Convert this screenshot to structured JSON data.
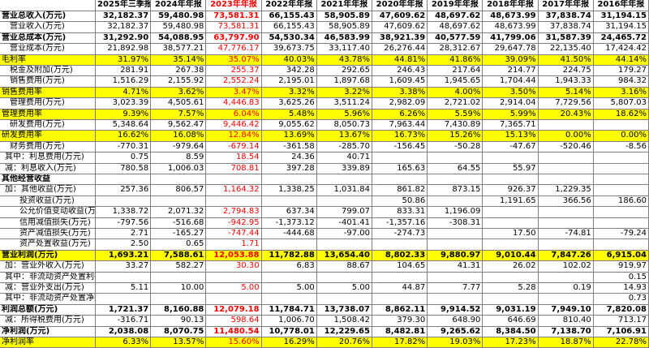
{
  "table": {
    "header": [
      "2025年三季报",
      "2024年年报",
      "2023年年报",
      "2022年年报",
      "2021年年报",
      "2020年年报",
      "2019年年报",
      "2018年年报",
      "2017年年报",
      "2016年年报"
    ],
    "rows": [
      {
        "label": "营业总收入(万元)",
        "cells": [
          "32,182.37",
          "59,480.98",
          "73,581.31",
          "66,155.43",
          "58,905.89",
          "47,609.62",
          "48,697.62",
          "48,673.99",
          "37,838.74",
          "31,194.15"
        ]
      },
      {
        "label": "营业收入(万元)",
        "cells": [
          "32,182.37",
          "59,480.98",
          "73,581.31",
          "66,155.43",
          "58,905.89",
          "47,609.62",
          "48,697.62",
          "48,673.99",
          "37,838.74",
          "31,194.15"
        ]
      },
      {
        "label": "营业总成本(万元)",
        "cells": [
          "31,292.90",
          "54,088.95",
          "63,797.90",
          "54,530.34",
          "46,583.99",
          "38,921.39",
          "40,577.59",
          "41,799.06",
          "31,587.39",
          "24,465.72"
        ]
      },
      {
        "label": "营业成本(万元)",
        "cells": [
          "21,892.98",
          "38,577.21",
          "47,776.17",
          "39,673.75",
          "33,117.40",
          "26,276.44",
          "28,312.67",
          "29,647.78",
          "22,135.40",
          "17,424.42"
        ]
      },
      {
        "label": "毛利率",
        "cells": [
          "31.97%",
          "35.14%",
          "35.07%",
          "40.03%",
          "43.78%",
          "44.81%",
          "41.86%",
          "39.09%",
          "41.50%",
          "44.14%"
        ]
      },
      {
        "label": "税金及附加(万元)",
        "cells": [
          "281.91",
          "267.38",
          "255.37",
          "342.28",
          "292.65",
          "246.43",
          "217.64",
          "214.77",
          "224.75",
          "179.27"
        ]
      },
      {
        "label": "销售费用(万元)",
        "cells": [
          "1,516.29",
          "2,155.92",
          "2,552.24",
          "2,195.01",
          "1,897.68",
          "1,609.45",
          "1,945.65",
          "1,704.44",
          "1,943.33",
          "984.32"
        ]
      },
      {
        "label": "销售费用率",
        "cells": [
          "4.71%",
          "3.62%",
          "3.47%",
          "3.32%",
          "3.22%",
          "3.38%",
          "4.00%",
          "3.50%",
          "5.14%",
          "3.16%"
        ]
      },
      {
        "label": "管理费用(万元)",
        "cells": [
          "3,023.39",
          "4,505.61",
          "4,446.83",
          "3,625.26",
          "3,511.24",
          "2,982.09",
          "2,721.02",
          "2,914.04",
          "7,729.56",
          "5,807.03"
        ]
      },
      {
        "label": "管理费用率",
        "cells": [
          "9.39%",
          "7.57%",
          "6.04%",
          "5.48%",
          "5.96%",
          "6.26%",
          "5.59%",
          "5.99%",
          "20.43%",
          "18.62%"
        ]
      },
      {
        "label": "研发费用(万元)",
        "cells": [
          "5,348.64",
          "9,562.47",
          "9,446.42",
          "9,055.62",
          "8,050.73",
          "7,963.44",
          "7,430.89",
          "7,365.71",
          null,
          null
        ]
      },
      {
        "label": "研发费用率",
        "cells": [
          "16.62%",
          "16.08%",
          "12.84%",
          "13.69%",
          "13.67%",
          "16.73%",
          "15.26%",
          "15.13%",
          "0.00%",
          "0.00%"
        ]
      },
      {
        "label": "财务费用(万元)",
        "cells": [
          "-770.31",
          "-979.64",
          "-679.14",
          "-361.58",
          "-285.70",
          "-156.45",
          "-50.28",
          "-47.67",
          "-520.46",
          "-8.56"
        ]
      },
      {
        "label": "其中：利息费用(万元)",
        "cells": [
          "0.75",
          "8.59",
          "18.54",
          "24.36",
          "40.71",
          null,
          null,
          null,
          null,
          null
        ]
      },
      {
        "label": "减：利息收入(万元)",
        "cells": [
          "780.58",
          "1,006.03",
          "708.81",
          "397.28",
          "339.89",
          "165.63",
          "64.55",
          "55.97",
          null,
          null
        ]
      },
      {
        "label": "其他经营收益",
        "cells": [
          null,
          null,
          null,
          null,
          null,
          null,
          null,
          null,
          null,
          null
        ]
      },
      {
        "label": "加：其他收益(万元)",
        "cells": [
          "257.36",
          "806.57",
          "1,164.32",
          "1,338.25",
          "1,031.84",
          "861.82",
          "873.15",
          "926.37",
          "1,229.35",
          null
        ]
      },
      {
        "label": "投资收益(万元)",
        "cells": [
          null,
          null,
          null,
          null,
          null,
          "50.86",
          null,
          "1,191.65",
          "366.56",
          "186.60"
        ]
      },
      {
        "label": "公允价值变动收益(万元)",
        "cells": [
          "1,338.72",
          "2,071.32",
          "2,794.83",
          "637.34",
          "799.07",
          "833.31",
          "1,196.09",
          null,
          null,
          null
        ]
      },
      {
        "label": "信用减值损失(万元)",
        "cells": [
          "-797.56",
          "-516.68",
          "-942.95",
          "-1,373.12",
          "-401.41",
          "-1,357.16",
          "-308.31",
          null,
          null,
          null
        ]
      },
      {
        "label": "资产减值损失(万元)",
        "cells": [
          "2.71",
          "-165.27",
          "-747.44",
          "-444.68",
          "-97.00",
          "-274.73",
          null,
          "17.50",
          "-74.81",
          "-79.24"
        ]
      },
      {
        "label": "资产处置收益(万元)",
        "cells": [
          "2.50",
          "0.65",
          "1.71",
          null,
          null,
          null,
          null,
          null,
          null,
          null
        ]
      },
      {
        "label": "营业利润(万元)",
        "cells": [
          "1,693.21",
          "7,588.61",
          "12,053.88",
          "11,782.88",
          "13,654.40",
          "8,802.33",
          "9,880.97",
          "9,010.44",
          "7,847.26",
          "6,915.04"
        ]
      },
      {
        "label": "加：营业外收入(万元)",
        "cells": [
          "33.27",
          "582.27",
          "30.30",
          "6.83",
          "88.67",
          "104.65",
          "41.31",
          "26.02",
          "102.02",
          "919.97"
        ]
      },
      {
        "label": "其中：非流动资产处置利得(万元)",
        "cells": [
          null,
          null,
          null,
          null,
          null,
          null,
          null,
          null,
          null,
          "0.15"
        ]
      },
      {
        "label": "减：营业外支出(万元)",
        "cells": [
          "5.11",
          "10.00",
          "5.00",
          "5.00",
          "5.00",
          "44.87",
          "7.77",
          "5.28",
          "0.19",
          "14.93"
        ]
      },
      {
        "label": "其中：非流动资产处置净损失(万元)",
        "cells": [
          null,
          null,
          null,
          null,
          null,
          null,
          null,
          null,
          null,
          "0.73"
        ]
      },
      {
        "label": "利润总额(万元)",
        "cells": [
          "1,721.37",
          "8,160.88",
          "12,079.18",
          "11,784.71",
          "13,738.07",
          "8,862.11",
          "9,914.52",
          "9,031.19",
          "7,949.10",
          "7,820.08"
        ]
      },
      {
        "label": "减：所得税费用(万元)",
        "cells": [
          "-316.71",
          "90.13",
          "598.64",
          "1,006.70",
          "1,508.42",
          "379.30",
          "648.90",
          "646.69",
          "810.40",
          "713.17"
        ]
      },
      {
        "label": "净利润(万元)",
        "cells": [
          "2,038.08",
          "8,070.75",
          "11,480.54",
          "10,778.01",
          "12,229.65",
          "8,482.81",
          "9,265.62",
          "8,384.50",
          "7,138.70",
          "7,106.91"
        ]
      },
      {
        "label": "净利润率",
        "cells": [
          "6.33%",
          "13.57%",
          "15.60%",
          "16.29%",
          "20.76%",
          "17.82%",
          "19.03%",
          "17.23%",
          "18.87%",
          "22.78%"
        ]
      }
    ]
  }
}
